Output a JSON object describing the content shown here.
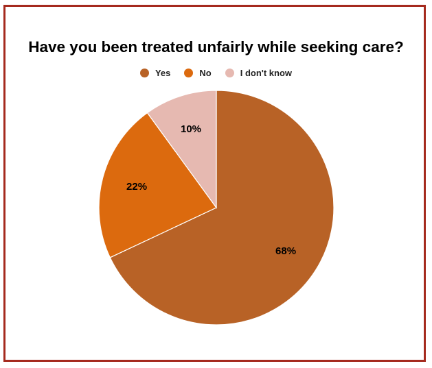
{
  "chart_data": {
    "type": "pie",
    "title": "Have you been treated unfairly while seeking care?",
    "legend_position": "top",
    "slices": [
      {
        "label": "Yes",
        "value": 68,
        "value_label": "68%",
        "color": "#b86226"
      },
      {
        "label": "No",
        "value": 22,
        "value_label": "22%",
        "color": "#dc6a0e"
      },
      {
        "label": "I don't know",
        "value": 10,
        "value_label": "10%",
        "color": "#e6b9b1"
      }
    ]
  },
  "colors": {
    "frame_border": "#a52a1e",
    "slice_separator": "#ffffff"
  }
}
